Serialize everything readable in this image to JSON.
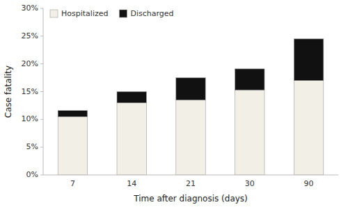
{
  "chart_data": {
    "type": "bar",
    "stacked": true,
    "categories": [
      "7",
      "14",
      "21",
      "30",
      "90"
    ],
    "series": [
      {
        "name": "Hospitalized",
        "color": "#f2f0e6",
        "values": [
          10.5,
          13.0,
          13.5,
          15.3,
          17.0
        ]
      },
      {
        "name": "Discharged",
        "color": "#111111",
        "values": [
          1.1,
          2.0,
          4.0,
          3.8,
          7.5
        ]
      }
    ],
    "xlabel": "Time after diagnosis (days)",
    "ylabel": "Case fatality",
    "ylim": [
      0,
      30
    ],
    "yticks": [
      {
        "value": 0,
        "label": "0%"
      },
      {
        "value": 5,
        "label": "5%"
      },
      {
        "value": 10,
        "label": "10%"
      },
      {
        "value": 15,
        "label": "15%"
      },
      {
        "value": 20,
        "label": "20%"
      },
      {
        "value": 25,
        "label": "25%"
      },
      {
        "value": 30,
        "label": "30%"
      }
    ],
    "grid": false,
    "legend": "upper left"
  }
}
